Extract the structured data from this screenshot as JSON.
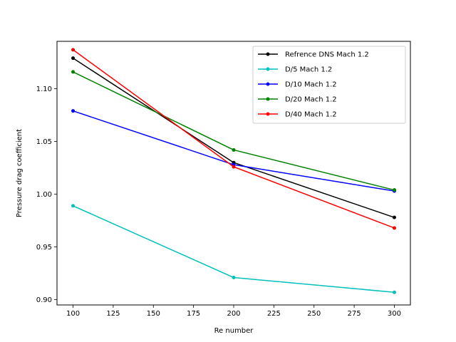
{
  "chart_data": {
    "type": "line",
    "title": "",
    "xlabel": "Re number",
    "ylabel": "Pressure drag coefficient",
    "x": [
      100,
      200,
      300
    ],
    "xlim": [
      90,
      310
    ],
    "ylim": [
      0.895,
      1.145
    ],
    "xticks": [
      100,
      125,
      150,
      175,
      200,
      225,
      250,
      275,
      300
    ],
    "xtick_labels": [
      "100",
      "125",
      "150",
      "175",
      "200",
      "225",
      "250",
      "275",
      "300"
    ],
    "yticks": [
      0.9,
      0.95,
      1.0,
      1.05,
      1.1
    ],
    "ytick_labels": [
      "0.90",
      "0.95",
      "1.00",
      "1.05",
      "1.10"
    ],
    "grid": false,
    "legend_position": "top-right",
    "series": [
      {
        "name": "Refrence DNS Mach 1.2",
        "color": "#000000",
        "values": [
          1.129,
          1.03,
          0.978
        ]
      },
      {
        "name": "D/5 Mach 1.2",
        "color": "#00bfbf",
        "values": [
          0.989,
          0.921,
          0.907
        ]
      },
      {
        "name": "D/10 Mach 1.2",
        "color": "#0000ff",
        "values": [
          1.079,
          1.028,
          1.003
        ]
      },
      {
        "name": "D/20 Mach 1.2",
        "color": "#008000",
        "values": [
          1.116,
          1.042,
          1.004
        ]
      },
      {
        "name": "D/40 Mach 1.2",
        "color": "#ff0000",
        "values": [
          1.137,
          1.026,
          0.968
        ]
      }
    ]
  }
}
